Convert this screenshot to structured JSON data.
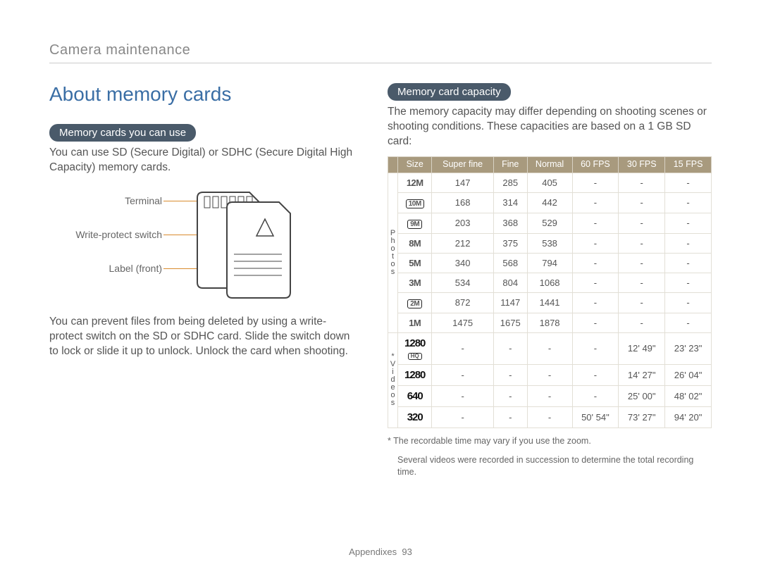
{
  "breadcrumb": "Camera maintenance",
  "title": "About memory cards",
  "left": {
    "pill1": "Memory cards you can use",
    "p1": "You can use SD (Secure Digital) or SDHC (Secure Digital High Capacity) memory cards.",
    "labels": {
      "terminal": "Terminal",
      "wps": "Write-protect switch",
      "label": "Label (front)"
    },
    "p2": "You can prevent files from being deleted by using a write-protect switch on the SD or SDHC card. Slide the switch down to lock or slide it up to unlock. Unlock the card when shooting."
  },
  "right": {
    "pill2": "Memory card capacity",
    "intro": "The memory capacity may differ depending on shooting scenes or shooting conditions. These capacities are based on a 1 GB SD card:",
    "headers": [
      "Size",
      "Super fine",
      "Fine",
      "Normal",
      "60 FPS",
      "30 FPS",
      "15 FPS"
    ],
    "side_photos": "P\nh\no\nt\no\ns",
    "side_videos": "*\nV\ni\nd\ne\no\ns",
    "photo_rows": [
      {
        "sz": "12M",
        "boxed": false,
        "sf": "147",
        "f": "285",
        "n": "405"
      },
      {
        "sz": "10M",
        "boxed": true,
        "sf": "168",
        "f": "314",
        "n": "442"
      },
      {
        "sz": "9M",
        "boxed": true,
        "sf": "203",
        "f": "368",
        "n": "529"
      },
      {
        "sz": "8M",
        "boxed": false,
        "sf": "212",
        "f": "375",
        "n": "538"
      },
      {
        "sz": "5M",
        "boxed": false,
        "sf": "340",
        "f": "568",
        "n": "794"
      },
      {
        "sz": "3M",
        "boxed": false,
        "sf": "534",
        "f": "804",
        "n": "1068"
      },
      {
        "sz": "2M",
        "boxed": true,
        "sf": "872",
        "f": "1147",
        "n": "1441"
      },
      {
        "sz": "1M",
        "boxed": false,
        "sf": "1475",
        "f": "1675",
        "n": "1878"
      }
    ],
    "video_rows": [
      {
        "sz": "1280",
        "hq": true,
        "fps60": "-",
        "fps30": "12' 49\"",
        "fps15": "23' 23\""
      },
      {
        "sz": "1280",
        "hq": false,
        "fps60": "-",
        "fps30": "14' 27\"",
        "fps15": "26' 04\""
      },
      {
        "sz": "640",
        "hq": false,
        "fps60": "-",
        "fps30": "25' 00\"",
        "fps15": "48' 02\""
      },
      {
        "sz": "320",
        "hq": false,
        "fps60": "50' 54\"",
        "fps30": "73' 27\"",
        "fps15": "94' 20\""
      }
    ],
    "footnote1": "* The recordable time may vary if you use the zoom.",
    "footnote2": "Several videos were recorded in succession to determine the total recording time."
  },
  "footer": {
    "section": "Appendixes",
    "page": "93"
  },
  "colors": {
    "title": "#3a6ea5",
    "pill_bg": "#4a5a6a",
    "th_bg": "#a89a7e",
    "leader": "#d98b2e"
  }
}
